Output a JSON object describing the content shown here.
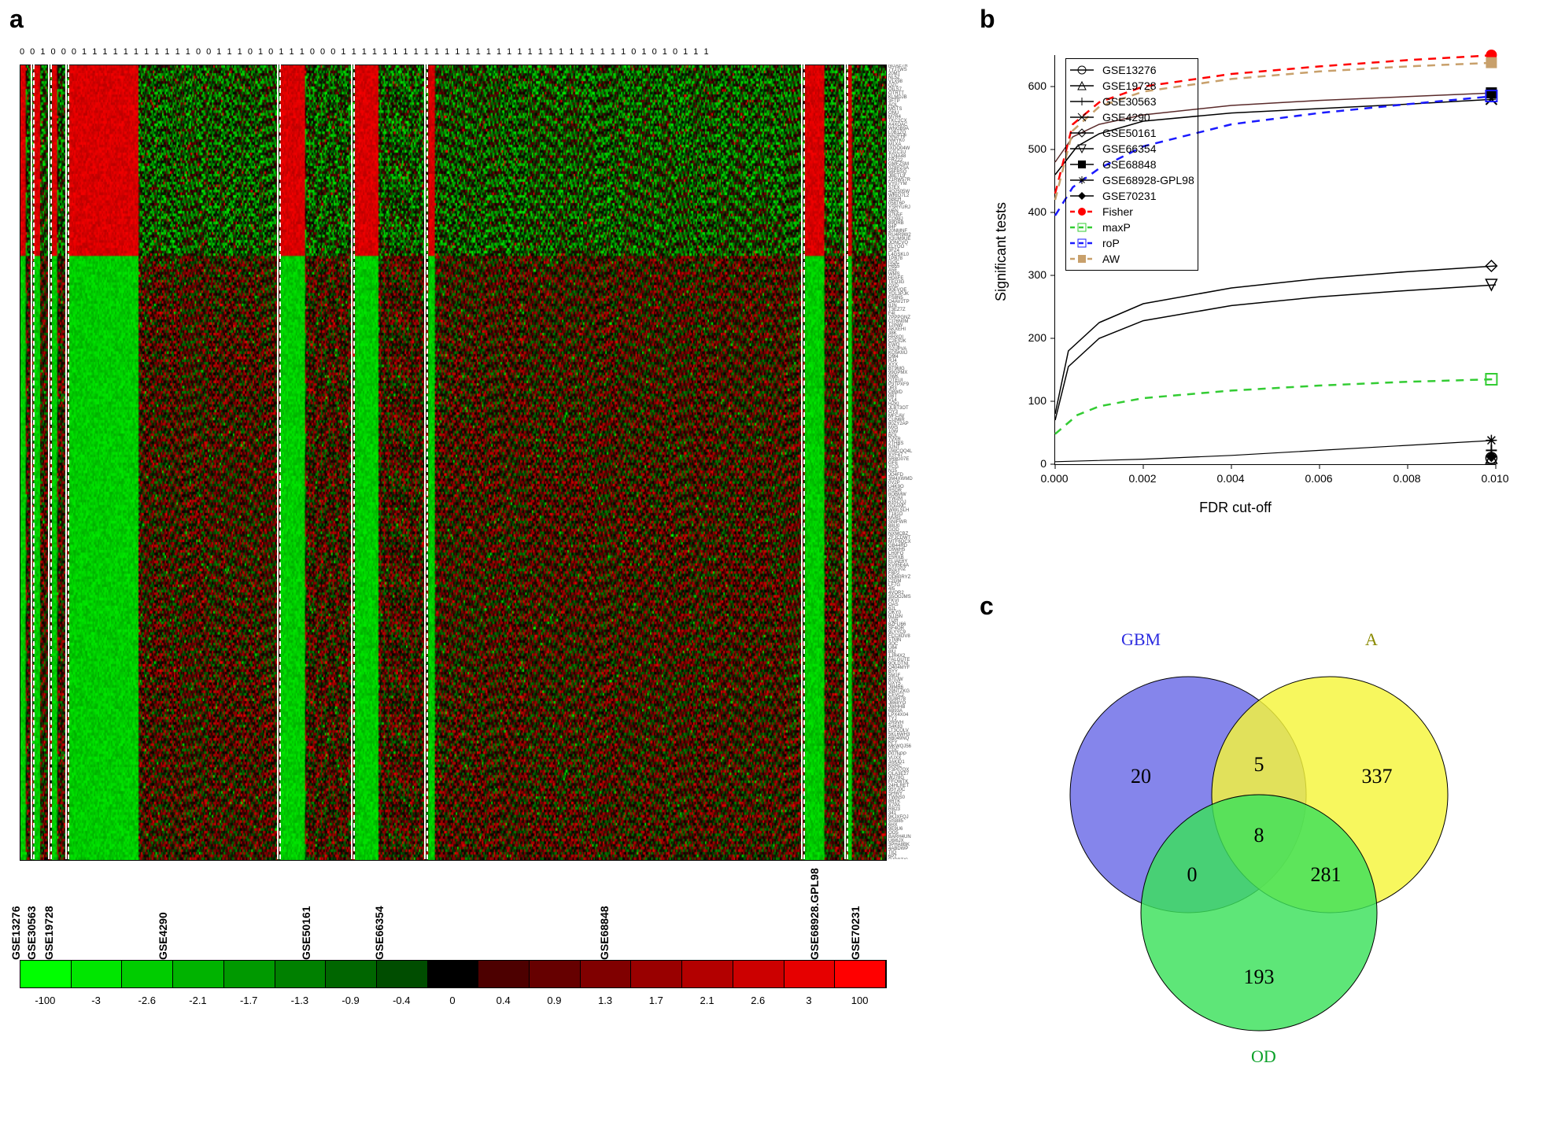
{
  "panels": {
    "a": "a",
    "b": "b",
    "c": "c"
  },
  "heatmap": {
    "top_bits": "0 0 1 0 0 0 1 1 1 1 1 1 1 1 1 1 1 0 0 1 1 1 0 1 0 1 1 1 0 0 0 1 1 1 1 1 1 1 1 1 1 1 1 1 1 1 1 1 1 1 1 1 1 1 1 1 1 1 1 0 1 0 1 0 1 1 1",
    "datasets": [
      {
        "name": "GSE13276",
        "start": 0.0,
        "end": 0.015
      },
      {
        "name": "GSE30563",
        "start": 0.015,
        "end": 0.035
      },
      {
        "name": "GSE19728",
        "start": 0.035,
        "end": 0.055
      },
      {
        "name": "GSE4290",
        "start": 0.055,
        "end": 0.3
      },
      {
        "name": "GSE50161",
        "start": 0.3,
        "end": 0.385
      },
      {
        "name": "GSE66354",
        "start": 0.385,
        "end": 0.47
      },
      {
        "name": "GSE68848",
        "start": 0.47,
        "end": 0.905
      },
      {
        "name": "GSE68928.GPL98",
        "start": 0.905,
        "end": 0.955
      },
      {
        "name": "GSE70231",
        "start": 0.955,
        "end": 1.0
      }
    ],
    "color_scale": {
      "ticks": [
        "-100",
        "-3",
        "-2.6",
        "-2.1",
        "-1.7",
        "-1.3",
        "-0.9",
        "-0.4",
        "0",
        "0.4",
        "0.9",
        "1.3",
        "1.7",
        "2.1",
        "2.6",
        "3",
        "100"
      ],
      "colors": [
        "#00ff00",
        "#00e600",
        "#00cc00",
        "#00b300",
        "#009900",
        "#008000",
        "#006600",
        "#004d00",
        "#000000",
        "#4d0000",
        "#660000",
        "#800000",
        "#990000",
        "#b30000",
        "#cc0000",
        "#e60000",
        "#ff0000"
      ]
    }
  },
  "chartB": {
    "xlabel": "FDR cut-off",
    "ylabel": "Significant tests",
    "xlim": [
      0,
      0.01
    ],
    "xticks": [
      "0.000",
      "0.002",
      "0.004",
      "0.006",
      "0.008",
      "0.010"
    ],
    "ylim": [
      0,
      650
    ],
    "yticks": [
      "0",
      "100",
      "200",
      "300",
      "400",
      "500",
      "600"
    ],
    "series": [
      {
        "label": "GSE13276",
        "color": "#000000",
        "dash": "solid",
        "marker": "circle-open",
        "end_y": 10
      },
      {
        "label": "GSE19728",
        "color": "#000000",
        "dash": "solid",
        "marker": "triangle-open",
        "end_y": 10
      },
      {
        "label": "GSE30563",
        "color": "#000000",
        "dash": "solid",
        "marker": "plus",
        "end_y": 22
      },
      {
        "label": "GSE4290",
        "color": "#000000",
        "dash": "solid",
        "marker": "x",
        "end_y": 580
      },
      {
        "label": "GSE50161",
        "color": "#000000",
        "dash": "solid",
        "marker": "diamond-open",
        "end_y": 315
      },
      {
        "label": "GSE66354",
        "color": "#000000",
        "dash": "solid",
        "marker": "tri-down-open",
        "end_y": 285
      },
      {
        "label": "GSE68848",
        "color": "#000000",
        "dash": "solid",
        "marker": "square-filled",
        "end_y": 590
      },
      {
        "label": "GSE68928-GPL98",
        "color": "#000000",
        "dash": "solid",
        "marker": "asterisk",
        "end_y": 38
      },
      {
        "label": "GSE70231",
        "color": "#000000",
        "dash": "solid",
        "marker": "diamond-filled",
        "end_y": 12
      },
      {
        "label": "Fisher",
        "color": "#ff0000",
        "dash": "dashed",
        "marker": "circle-filled",
        "end_y": 650
      },
      {
        "label": "maxP",
        "color": "#33cc33",
        "dash": "dashed",
        "marker": "square-open-g",
        "end_y": 135
      },
      {
        "label": "roP",
        "color": "#1a1aff",
        "dash": "dashed",
        "marker": "square-open-b",
        "end_y": 585
      },
      {
        "label": "AW",
        "color": "#c8a06b",
        "dash": "dashed",
        "marker": "square-filled-t",
        "end_y": 638
      }
    ],
    "paths": {
      "GSE68848": [
        [
          0,
          480
        ],
        [
          0.0004,
          520
        ],
        [
          0.001,
          540
        ],
        [
          0.002,
          555
        ],
        [
          0.004,
          570
        ],
        [
          0.006,
          578
        ],
        [
          0.008,
          584
        ],
        [
          0.01,
          590
        ]
      ],
      "GSE4290": [
        [
          0,
          460
        ],
        [
          0.0005,
          505
        ],
        [
          0.001,
          525
        ],
        [
          0.002,
          545
        ],
        [
          0.004,
          558
        ],
        [
          0.006,
          565
        ],
        [
          0.008,
          572
        ],
        [
          0.01,
          580
        ]
      ],
      "GSE50161": [
        [
          0,
          80
        ],
        [
          0.0003,
          180
        ],
        [
          0.001,
          225
        ],
        [
          0.002,
          255
        ],
        [
          0.004,
          280
        ],
        [
          0.006,
          295
        ],
        [
          0.008,
          306
        ],
        [
          0.01,
          315
        ]
      ],
      "GSE66354": [
        [
          0,
          70
        ],
        [
          0.0003,
          155
        ],
        [
          0.001,
          200
        ],
        [
          0.002,
          228
        ],
        [
          0.004,
          252
        ],
        [
          0.006,
          266
        ],
        [
          0.008,
          276
        ],
        [
          0.01,
          285
        ]
      ],
      "Fisher": [
        [
          0,
          430
        ],
        [
          0.0004,
          540
        ],
        [
          0.001,
          575
        ],
        [
          0.002,
          600
        ],
        [
          0.004,
          620
        ],
        [
          0.006,
          632
        ],
        [
          0.008,
          642
        ],
        [
          0.01,
          650
        ]
      ],
      "AW": [
        [
          0,
          420
        ],
        [
          0.0004,
          530
        ],
        [
          0.001,
          568
        ],
        [
          0.002,
          592
        ],
        [
          0.004,
          612
        ],
        [
          0.006,
          624
        ],
        [
          0.008,
          632
        ],
        [
          0.01,
          638
        ]
      ],
      "roP": [
        [
          0,
          395
        ],
        [
          0.0004,
          440
        ],
        [
          0.001,
          470
        ],
        [
          0.002,
          505
        ],
        [
          0.004,
          540
        ],
        [
          0.006,
          558
        ],
        [
          0.008,
          572
        ],
        [
          0.01,
          585
        ]
      ],
      "maxP": [
        [
          0,
          48
        ],
        [
          0.0005,
          78
        ],
        [
          0.001,
          92
        ],
        [
          0.002,
          105
        ],
        [
          0.004,
          117
        ],
        [
          0.006,
          125
        ],
        [
          0.008,
          131
        ],
        [
          0.01,
          135
        ]
      ],
      "low": [
        [
          0,
          4
        ],
        [
          0.002,
          8
        ],
        [
          0.004,
          14
        ],
        [
          0.006,
          22
        ],
        [
          0.008,
          30
        ],
        [
          0.01,
          38
        ]
      ]
    }
  },
  "venn": {
    "labels": {
      "gbm": "GBM",
      "a": "A",
      "od": "OD"
    },
    "colors": {
      "gbm": "#6a6ae6",
      "a": "#f5f53b",
      "od": "#3be05a"
    },
    "opacity": 0.82,
    "counts": {
      "gbm_only": 20,
      "a_only": 337,
      "od_only": 193,
      "gbm_a": 5,
      "gbm_od": 0,
      "a_od": 281,
      "all": 8
    }
  }
}
